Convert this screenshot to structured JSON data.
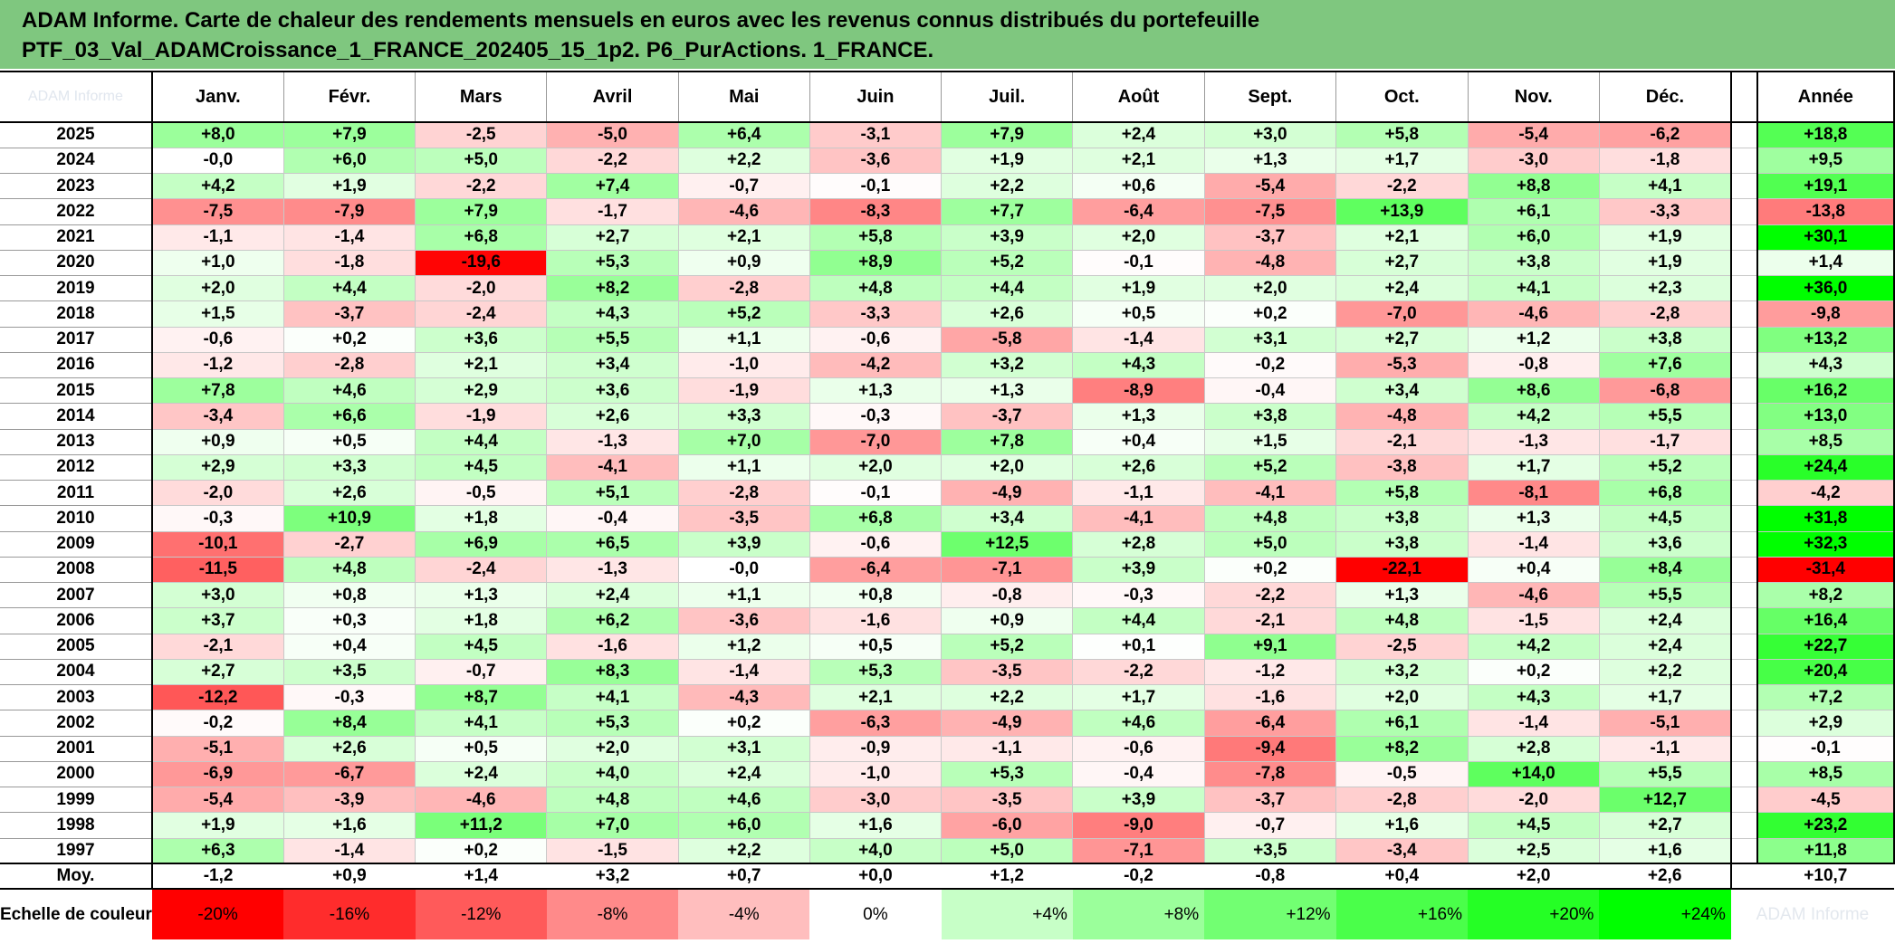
{
  "title": {
    "line1": "ADAM Informe. Carte de chaleur des rendements mensuels en euros avec les revenus connus distribués du portefeuille",
    "line2": "PTF_03_Val_ADAMCroissance_1_FRANCE_202405_15_1p2. P6_PurActions. 1_FRANCE."
  },
  "header": {
    "corner_watermark": "ADAM Informe",
    "annee_label": "Année"
  },
  "footer": {
    "moy_label": "Moy.",
    "scale_label": "Echelle de couleur",
    "scale_watermark": "ADAM Informe"
  },
  "colors": {
    "max_red": "#ff0000",
    "max_green": "#00ff00",
    "neutral": "#ffffff",
    "title_bar": "#7fc77f"
  },
  "chart_data": {
    "type": "heatmap",
    "title": "ADAM Informe. Carte de chaleur des rendements mensuels en euros avec les revenus connus distribués du portefeuille PTF_03_Val_ADAMCroissance_1_FRANCE_202405_15_1p2. P6_PurActions. 1_FRANCE.",
    "columns": [
      "Janv.",
      "Févr.",
      "Mars",
      "Avril",
      "Mai",
      "Juin",
      "Juil.",
      "Août",
      "Sept.",
      "Oct.",
      "Nov.",
      "Déc."
    ],
    "rows": [
      {
        "year": "2025",
        "values": [
          "+8,0",
          "+7,9",
          "-2,5",
          "-5,0",
          "+6,4",
          "-3,1",
          "+7,9",
          "+2,4",
          "+3,0",
          "+5,8",
          "-5,4",
          "-6,2"
        ],
        "annual": "+18,8"
      },
      {
        "year": "2024",
        "values": [
          "-0,0",
          "+6,0",
          "+5,0",
          "-2,2",
          "+2,2",
          "-3,6",
          "+1,9",
          "+2,1",
          "+1,3",
          "+1,7",
          "-3,0",
          "-1,8"
        ],
        "annual": "+9,5"
      },
      {
        "year": "2023",
        "values": [
          "+4,2",
          "+1,9",
          "-2,2",
          "+7,4",
          "-0,7",
          "-0,1",
          "+2,2",
          "+0,6",
          "-5,4",
          "-2,2",
          "+8,8",
          "+4,1"
        ],
        "annual": "+19,1"
      },
      {
        "year": "2022",
        "values": [
          "-7,5",
          "-7,9",
          "+7,9",
          "-1,7",
          "-4,6",
          "-8,3",
          "+7,7",
          "-6,4",
          "-7,5",
          "+13,9",
          "+6,1",
          "-3,3"
        ],
        "annual": "-13,8"
      },
      {
        "year": "2021",
        "values": [
          "-1,1",
          "-1,4",
          "+6,8",
          "+2,7",
          "+2,1",
          "+5,8",
          "+3,9",
          "+2,0",
          "-3,7",
          "+2,1",
          "+6,0",
          "+1,9"
        ],
        "annual": "+30,1"
      },
      {
        "year": "2020",
        "values": [
          "+1,0",
          "-1,8",
          "-19,6",
          "+5,3",
          "+0,9",
          "+8,9",
          "+5,2",
          "-0,1",
          "-4,8",
          "+2,7",
          "+3,8",
          "+1,9"
        ],
        "annual": "+1,4"
      },
      {
        "year": "2019",
        "values": [
          "+2,0",
          "+4,4",
          "-2,0",
          "+8,2",
          "-2,8",
          "+4,8",
          "+4,4",
          "+1,9",
          "+2,0",
          "+2,4",
          "+4,1",
          "+2,3"
        ],
        "annual": "+36,0"
      },
      {
        "year": "2018",
        "values": [
          "+1,5",
          "-3,7",
          "-2,4",
          "+4,3",
          "+5,2",
          "-3,3",
          "+2,6",
          "+0,5",
          "+0,2",
          "-7,0",
          "-4,6",
          "-2,8"
        ],
        "annual": "-9,8"
      },
      {
        "year": "2017",
        "values": [
          "-0,6",
          "+0,2",
          "+3,6",
          "+5,5",
          "+1,1",
          "-0,6",
          "-5,8",
          "-1,4",
          "+3,1",
          "+2,7",
          "+1,2",
          "+3,8"
        ],
        "annual": "+13,2"
      },
      {
        "year": "2016",
        "values": [
          "-1,2",
          "-2,8",
          "+2,1",
          "+3,4",
          "-1,0",
          "-4,2",
          "+3,2",
          "+4,3",
          "-0,2",
          "-5,3",
          "-0,8",
          "+7,6"
        ],
        "annual": "+4,3"
      },
      {
        "year": "2015",
        "values": [
          "+7,8",
          "+4,6",
          "+2,9",
          "+3,6",
          "-1,9",
          "+1,3",
          "+1,3",
          "-8,9",
          "-0,4",
          "+3,4",
          "+8,6",
          "-6,8"
        ],
        "annual": "+16,2"
      },
      {
        "year": "2014",
        "values": [
          "-3,4",
          "+6,6",
          "-1,9",
          "+2,6",
          "+3,3",
          "-0,3",
          "-3,7",
          "+1,3",
          "+3,8",
          "-4,8",
          "+4,2",
          "+5,5"
        ],
        "annual": "+13,0"
      },
      {
        "year": "2013",
        "values": [
          "+0,9",
          "+0,5",
          "+4,4",
          "-1,3",
          "+7,0",
          "-7,0",
          "+7,8",
          "+0,4",
          "+1,5",
          "-2,1",
          "-1,3",
          "-1,7"
        ],
        "annual": "+8,5"
      },
      {
        "year": "2012",
        "values": [
          "+2,9",
          "+3,3",
          "+4,5",
          "-4,1",
          "+1,1",
          "+2,0",
          "+2,0",
          "+2,6",
          "+5,2",
          "-3,8",
          "+1,7",
          "+5,2"
        ],
        "annual": "+24,4"
      },
      {
        "year": "2011",
        "values": [
          "-2,0",
          "+2,6",
          "-0,5",
          "+5,1",
          "-2,8",
          "-0,1",
          "-4,9",
          "-1,1",
          "-4,1",
          "+5,8",
          "-8,1",
          "+6,8"
        ],
        "annual": "-4,2"
      },
      {
        "year": "2010",
        "values": [
          "-0,3",
          "+10,9",
          "+1,8",
          "-0,4",
          "-3,5",
          "+6,8",
          "+3,4",
          "-4,1",
          "+4,8",
          "+3,8",
          "+1,3",
          "+4,5"
        ],
        "annual": "+31,8"
      },
      {
        "year": "2009",
        "values": [
          "-10,1",
          "-2,7",
          "+6,9",
          "+6,5",
          "+3,9",
          "-0,6",
          "+12,5",
          "+2,8",
          "+5,0",
          "+3,8",
          "-1,4",
          "+3,6"
        ],
        "annual": "+32,3"
      },
      {
        "year": "2008",
        "values": [
          "-11,5",
          "+4,8",
          "-2,4",
          "-1,3",
          "-0,0",
          "-6,4",
          "-7,1",
          "+3,9",
          "+0,2",
          "-22,1",
          "+0,4",
          "+8,4"
        ],
        "annual": "-31,4"
      },
      {
        "year": "2007",
        "values": [
          "+3,0",
          "+0,8",
          "+1,3",
          "+2,4",
          "+1,1",
          "+0,8",
          "-0,8",
          "-0,3",
          "-2,2",
          "+1,3",
          "-4,6",
          "+5,5"
        ],
        "annual": "+8,2"
      },
      {
        "year": "2006",
        "values": [
          "+3,7",
          "+0,3",
          "+1,8",
          "+6,2",
          "-3,6",
          "-1,6",
          "+0,9",
          "+4,4",
          "-2,1",
          "+4,8",
          "-1,5",
          "+2,4"
        ],
        "annual": "+16,4"
      },
      {
        "year": "2005",
        "values": [
          "-2,1",
          "+0,4",
          "+4,5",
          "-1,6",
          "+1,2",
          "+0,5",
          "+5,2",
          "+0,1",
          "+9,1",
          "-2,5",
          "+4,2",
          "+2,4"
        ],
        "annual": "+22,7"
      },
      {
        "year": "2004",
        "values": [
          "+2,7",
          "+3,5",
          "-0,7",
          "+8,3",
          "-1,4",
          "+5,3",
          "-3,5",
          "-2,2",
          "-1,2",
          "+3,2",
          "+0,2",
          "+2,2"
        ],
        "annual": "+20,4"
      },
      {
        "year": "2003",
        "values": [
          "-12,2",
          "-0,3",
          "+8,7",
          "+4,1",
          "-4,3",
          "+2,1",
          "+2,2",
          "+1,7",
          "-1,6",
          "+2,0",
          "+4,3",
          "+1,7"
        ],
        "annual": "+7,2"
      },
      {
        "year": "2002",
        "values": [
          "-0,2",
          "+8,4",
          "+4,1",
          "+5,3",
          "+0,2",
          "-6,3",
          "-4,9",
          "+4,6",
          "-6,4",
          "+6,1",
          "-1,4",
          "-5,1"
        ],
        "annual": "+2,9"
      },
      {
        "year": "2001",
        "values": [
          "-5,1",
          "+2,6",
          "+0,5",
          "+2,0",
          "+3,1",
          "-0,9",
          "-1,1",
          "-0,6",
          "-9,4",
          "+8,2",
          "+2,8",
          "-1,1"
        ],
        "annual": "-0,1"
      },
      {
        "year": "2000",
        "values": [
          "-6,9",
          "-6,7",
          "+2,4",
          "+4,0",
          "+2,4",
          "-1,0",
          "+5,3",
          "-0,4",
          "-7,8",
          "-0,5",
          "+14,0",
          "+5,5"
        ],
        "annual": "+8,5"
      },
      {
        "year": "1999",
        "values": [
          "-5,4",
          "-3,9",
          "-4,6",
          "+4,8",
          "+4,6",
          "-3,0",
          "-3,5",
          "+3,9",
          "-3,7",
          "-2,8",
          "-2,0",
          "+12,7"
        ],
        "annual": "-4,5"
      },
      {
        "year": "1998",
        "values": [
          "+1,9",
          "+1,6",
          "+11,2",
          "+7,0",
          "+6,0",
          "+1,6",
          "-6,0",
          "-9,0",
          "-0,7",
          "+1,6",
          "+4,5",
          "+2,7"
        ],
        "annual": "+23,2"
      },
      {
        "year": "1997",
        "values": [
          "+6,3",
          "-1,4",
          "+0,2",
          "-1,5",
          "+2,2",
          "+4,0",
          "+5,0",
          "-7,1",
          "+3,5",
          "-3,4",
          "+2,5",
          "+1,6"
        ],
        "annual": "+11,8"
      }
    ],
    "average": {
      "values": [
        "-1,2",
        "+0,9",
        "+1,4",
        "+3,2",
        "+0,7",
        "+0,0",
        "+1,2",
        "-0,2",
        "-0,8",
        "+0,4",
        "+2,0",
        "+2,6"
      ],
      "annual": "+10,7"
    },
    "color_scale": [
      {
        "label": "-20%",
        "value": -20
      },
      {
        "label": "-16%",
        "value": -16
      },
      {
        "label": "-12%",
        "value": -12
      },
      {
        "label": "-8%",
        "value": -8
      },
      {
        "label": "-4%",
        "value": -4
      },
      {
        "label": "0%",
        "value": 0
      },
      {
        "label": "+4%",
        "value": 4
      },
      {
        "label": "+8%",
        "value": 8
      },
      {
        "label": "+12%",
        "value": 12
      },
      {
        "label": "+16%",
        "value": 16
      },
      {
        "label": "+20%",
        "value": 20
      },
      {
        "label": "+24%",
        "value": 24
      }
    ],
    "monthly_color_range": [
      -20,
      24
    ],
    "annual_color_range": [
      -30,
      30
    ]
  }
}
